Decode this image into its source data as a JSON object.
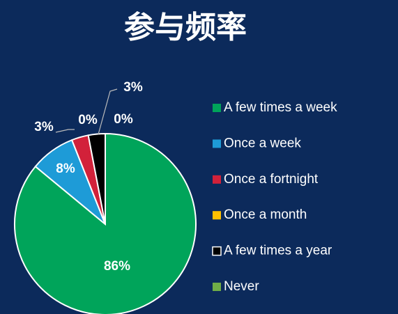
{
  "chart_data": {
    "type": "pie",
    "title": "参与频率",
    "categories": [
      "A few times a week",
      "Once a week",
      "Once a fortnight",
      "Once a month",
      "A few times a year",
      "Never"
    ],
    "values": [
      86,
      8,
      3,
      0,
      3,
      0
    ],
    "value_labels": [
      "86%",
      "8%",
      "3%",
      "0%",
      "3%",
      "0%"
    ],
    "colors": [
      "#00a45a",
      "#1e9bd7",
      "#d2213a",
      "#ffc000",
      "#000000",
      "#70ad47"
    ],
    "legend": "right"
  }
}
